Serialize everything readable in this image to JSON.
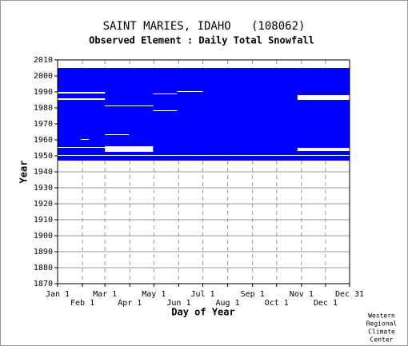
{
  "chart_data": {
    "type": "coverage",
    "title": "SAINT MARIES, IDAHO   (108062)",
    "subtitle": "Observed Element : Daily Total Snowfall",
    "x_label": "Day of Year",
    "y_label": "Year",
    "credit": [
      "Western",
      "Regional",
      "Climate",
      "Center"
    ],
    "color": "#0000ff",
    "grid": true,
    "xlim": [
      1,
      365
    ],
    "ylim": [
      1870,
      2010
    ],
    "xticks": [
      {
        "value": 1,
        "label": "Jan 1"
      },
      {
        "value": 32,
        "label": "Feb 1"
      },
      {
        "value": 60,
        "label": "Mar 1"
      },
      {
        "value": 91,
        "label": "Apr 1"
      },
      {
        "value": 121,
        "label": "May 1"
      },
      {
        "value": 152,
        "label": "Jun 1"
      },
      {
        "value": 182,
        "label": "Jul 1"
      },
      {
        "value": 213,
        "label": "Aug 1"
      },
      {
        "value": 244,
        "label": "Sep 1"
      },
      {
        "value": 274,
        "label": "Oct 1"
      },
      {
        "value": 305,
        "label": "Nov 1"
      },
      {
        "value": 335,
        "label": "Dec 1"
      },
      {
        "value": 365,
        "label": "Dec 31"
      }
    ],
    "yticks": [
      1870,
      1880,
      1890,
      1900,
      1910,
      1920,
      1930,
      1940,
      1950,
      1960,
      1970,
      1980,
      1990,
      2000,
      2010
    ],
    "coverage": {
      "days": [
        1,
        365
      ],
      "years": [
        1947,
        2005
      ]
    },
    "missing": [
      {
        "days": [
          1,
          60
        ],
        "years": [
          1985,
          1986
        ]
      },
      {
        "days": [
          1,
          60
        ],
        "years": [
          1989,
          1990
        ]
      },
      {
        "days": [
          60,
          120
        ],
        "years": [
          1981,
          1981.5
        ]
      },
      {
        "days": [
          120,
          150
        ],
        "years": [
          1988.5,
          1989
        ]
      },
      {
        "days": [
          150,
          182
        ],
        "years": [
          1990,
          1990.5
        ]
      },
      {
        "days": [
          120,
          150
        ],
        "years": [
          1978,
          1978.5
        ]
      },
      {
        "days": [
          60,
          90
        ],
        "years": [
          1963,
          1963.5
        ]
      },
      {
        "days": [
          30,
          40
        ],
        "years": [
          1960,
          1960.5
        ]
      },
      {
        "days": [
          60,
          120
        ],
        "years": [
          1952.5,
          1956
        ]
      },
      {
        "days": [
          1,
          60
        ],
        "years": [
          1955,
          1955.5
        ]
      },
      {
        "days": [
          1,
          365
        ],
        "years": [
          1950,
          1950.5
        ]
      },
      {
        "days": [
          300,
          365
        ],
        "years": [
          1985,
          1988
        ]
      },
      {
        "days": [
          300,
          365
        ],
        "years": [
          1953,
          1955
        ]
      }
    ]
  }
}
